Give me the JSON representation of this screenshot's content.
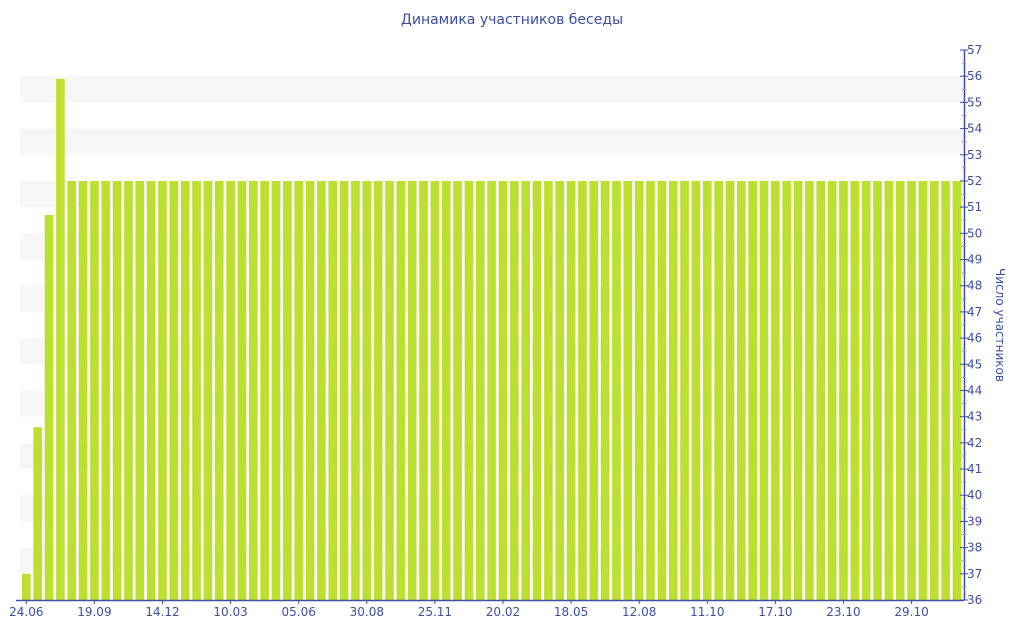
{
  "chart_data": {
    "type": "bar",
    "title": "Динамика участников беседы",
    "ylabel": "Число участников",
    "xlabel": "",
    "ylim": [
      36,
      57
    ],
    "y_axis_position": "right",
    "grid": "alternating horizontal bands",
    "bar_color": "#bde030",
    "axis_color": "#3f51a0",
    "x_tick_every": 6,
    "x_tick_labels": [
      "24.06",
      "19.09",
      "14.12",
      "10.03",
      "05.06",
      "30.08",
      "25.11",
      "20.02",
      "18.05",
      "12.08",
      "11.10",
      "17.10",
      "23.10",
      "29.10"
    ],
    "values": [
      37,
      42.6,
      50.7,
      55.9,
      52,
      52,
      52,
      52,
      52,
      52,
      52,
      52,
      52,
      52,
      52,
      52,
      52,
      52,
      52,
      52,
      52,
      52,
      52,
      52,
      52,
      52,
      52,
      52,
      52,
      52,
      52,
      52,
      52,
      52,
      52,
      52,
      52,
      52,
      52,
      52,
      52,
      52,
      52,
      52,
      52,
      52,
      52,
      52,
      52,
      52,
      52,
      52,
      52,
      52,
      52,
      52,
      52,
      52,
      52,
      52,
      52,
      52,
      52,
      52,
      52,
      52,
      52,
      52,
      52,
      52,
      52,
      52,
      52,
      52,
      52,
      52,
      52,
      52,
      52,
      52,
      52,
      52,
      52
    ]
  }
}
